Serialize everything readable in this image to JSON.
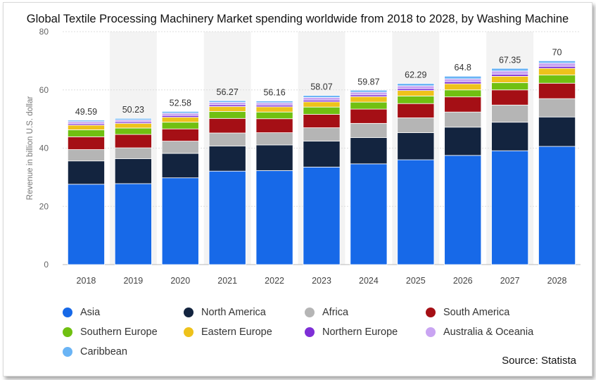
{
  "chart_data": {
    "type": "bar",
    "stacked": true,
    "title": "Global Textile Processing Machinery Market spending worldwide from 2018 to 2028, by Washing Machine",
    "ylabel": "Revenue in billion U.S. dollar",
    "ylim": [
      0,
      80
    ],
    "yticks": [
      0,
      20,
      40,
      60,
      80
    ],
    "grid": true,
    "legend_position": "bottom",
    "categories": [
      "2018",
      "2019",
      "2020",
      "2021",
      "2022",
      "2023",
      "2024",
      "2025",
      "2026",
      "2027",
      "2028"
    ],
    "totals": [
      "49.59",
      "50.23",
      "52.58",
      "56.27",
      "56.16",
      "58.07",
      "59.87",
      "62.29",
      "64.8",
      "67.35",
      "70"
    ],
    "series": [
      {
        "name": "Asia",
        "color": "#1769e8",
        "values": [
          27.6,
          27.8,
          29.8,
          32.1,
          32.3,
          33.5,
          34.6,
          36.0,
          37.5,
          39.1,
          40.6
        ]
      },
      {
        "name": "North America",
        "color": "#13243f",
        "values": [
          8.0,
          8.6,
          8.4,
          8.6,
          8.8,
          8.9,
          9.0,
          9.3,
          9.7,
          9.8,
          10.1
        ]
      },
      {
        "name": "Africa",
        "color": "#b5b5b5",
        "values": [
          3.9,
          3.7,
          4.2,
          4.5,
          4.2,
          4.6,
          4.9,
          5.1,
          5.2,
          5.9,
          6.3
        ]
      },
      {
        "name": "South America",
        "color": "#a50f15",
        "values": [
          4.4,
          4.6,
          4.2,
          5.0,
          4.8,
          4.6,
          4.9,
          4.9,
          5.2,
          5.2,
          5.3
        ]
      },
      {
        "name": "Southern Europe",
        "color": "#70c011",
        "values": [
          2.4,
          2.2,
          2.3,
          2.4,
          2.3,
          2.5,
          2.4,
          2.6,
          2.4,
          2.5,
          2.8
        ]
      },
      {
        "name": "Eastern Europe",
        "color": "#eec21b",
        "values": [
          1.6,
          1.6,
          1.7,
          1.7,
          1.8,
          1.8,
          1.9,
          1.9,
          2.1,
          2.2,
          2.3
        ]
      },
      {
        "name": "Northern Europe",
        "color": "#7e2fd6",
        "values": [
          0.5,
          0.5,
          0.6,
          0.6,
          0.6,
          0.6,
          0.6,
          0.6,
          0.7,
          0.7,
          0.7
        ]
      },
      {
        "name": "Australia & Oceania",
        "color": "#c9a4f2",
        "values": [
          0.7,
          0.7,
          0.8,
          0.8,
          0.8,
          0.9,
          0.9,
          1.0,
          1.0,
          1.1,
          1.1
        ]
      },
      {
        "name": "Caribbean",
        "color": "#6ab4f5",
        "values": [
          0.5,
          0.5,
          0.6,
          0.6,
          0.6,
          0.7,
          0.7,
          0.8,
          0.9,
          0.9,
          0.8
        ]
      }
    ]
  },
  "source": "Source: Statista"
}
